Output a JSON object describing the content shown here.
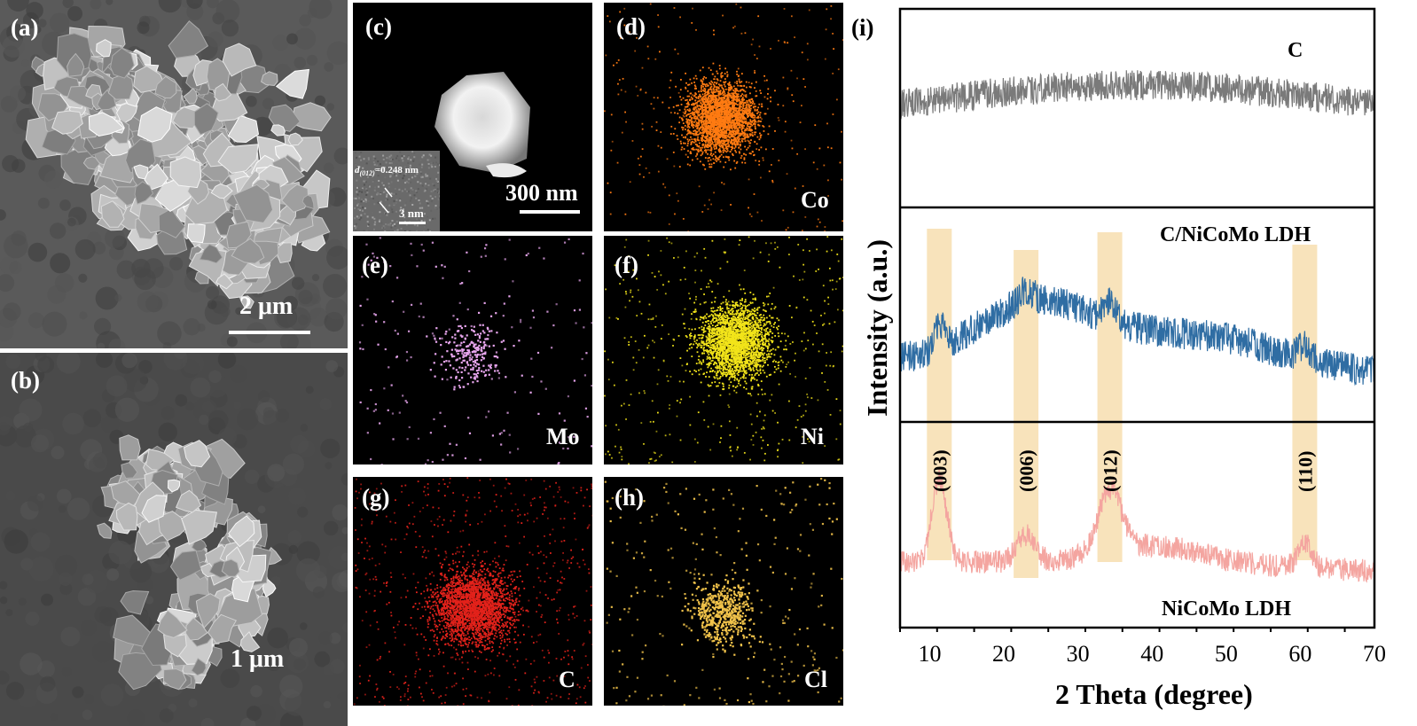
{
  "panels": {
    "a": {
      "label": "(a)",
      "scale_bar": "2 μm"
    },
    "b": {
      "label": "(b)",
      "scale_bar": "1 μm"
    },
    "c": {
      "label": "(c)",
      "scale_bar": "300 nm",
      "inset_d_prefix": "d",
      "inset_d_subscript": "(012)",
      "inset_d_value": "=0.248 nm",
      "inset_scale": "3 nm"
    },
    "d": {
      "label": "(d)",
      "element": "Co",
      "color": "#ff7b12"
    },
    "e": {
      "label": "(e)",
      "element": "Mo",
      "color": "#e8a6ee"
    },
    "f": {
      "label": "(f)",
      "element": "Ni",
      "color": "#f2e41a"
    },
    "g": {
      "label": "(g)",
      "element": "C",
      "color": "#e3221b"
    },
    "h": {
      "label": "(h)",
      "element": "Cl",
      "color": "#f0c24a"
    }
  },
  "chart_data": {
    "label": "(i)",
    "type": "line",
    "xlabel": "2 Theta (degree)",
    "ylabel": "Intensity (a.u.)",
    "xlim": [
      6,
      70
    ],
    "xticks": [
      10,
      20,
      30,
      40,
      50,
      60,
      70
    ],
    "series": [
      {
        "name": "C",
        "color": "#7a7a7a"
      },
      {
        "name": "C/NiCoMo LDH",
        "color": "#2f6da3"
      },
      {
        "name": "NiCoMo LDH",
        "color": "#f4a5a0"
      }
    ],
    "peaks": [
      {
        "name": "(003)",
        "two_theta": 11.3
      },
      {
        "name": "(006)",
        "two_theta": 23.0
      },
      {
        "name": "(012)",
        "two_theta": 34.3
      },
      {
        "name": "(110)",
        "two_theta": 60.6
      }
    ],
    "highlight_color": "#f6d9a4"
  }
}
